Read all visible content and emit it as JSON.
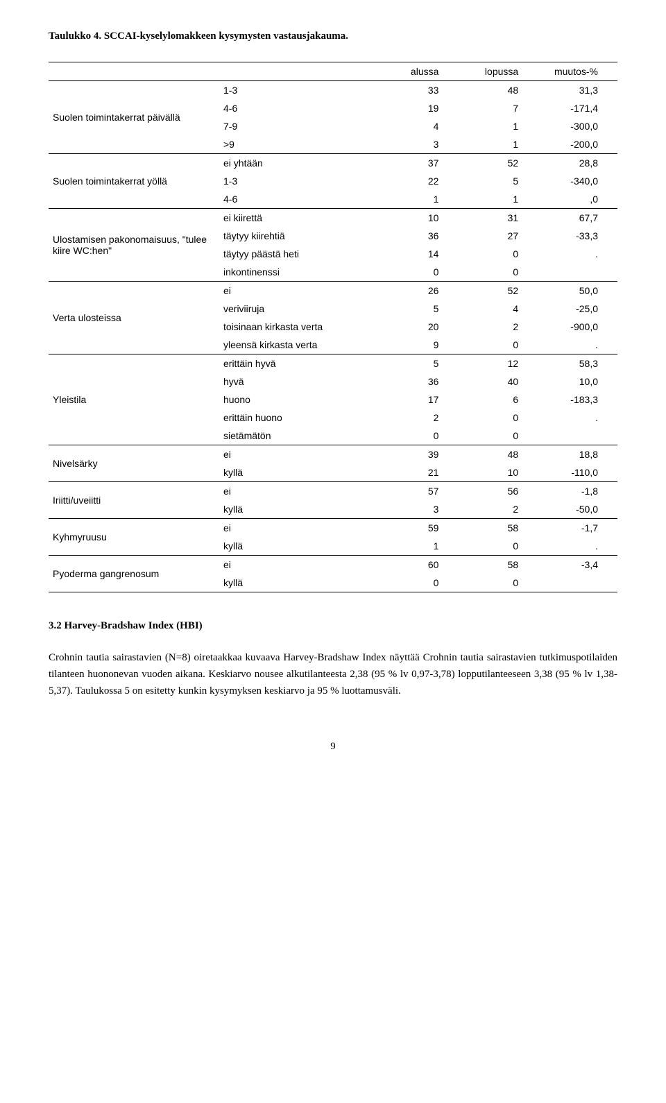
{
  "title_line": "Taulukko 4. SCCAI-kyselylomakkeen kysymysten vastausjakauma.",
  "table": {
    "headers": {
      "c1": "",
      "c2": "",
      "c3": "alussa",
      "c4": "lopussa",
      "c5": "muutos-%"
    },
    "groups": [
      {
        "label": "Suolen toimintakerrat päivällä",
        "rows": [
          {
            "opt": "1-3",
            "a": "33",
            "b": "48",
            "c": "31,3"
          },
          {
            "opt": "4-6",
            "a": "19",
            "b": "7",
            "c": "-171,4"
          },
          {
            "opt": "7-9",
            "a": "4",
            "b": "1",
            "c": "-300,0"
          },
          {
            "opt": ">9",
            "a": "3",
            "b": "1",
            "c": "-200,0"
          }
        ]
      },
      {
        "label": "Suolen toimintakerrat yöllä",
        "rows": [
          {
            "opt": "ei yhtään",
            "a": "37",
            "b": "52",
            "c": "28,8"
          },
          {
            "opt": "1-3",
            "a": "22",
            "b": "5",
            "c": "-340,0"
          },
          {
            "opt": "4-6",
            "a": "1",
            "b": "1",
            "c": ",0"
          }
        ]
      },
      {
        "label": "Ulostamisen pakonomaisuus, \"tulee kiire WC:hen\"",
        "rows": [
          {
            "opt": "ei kiirettä",
            "a": "10",
            "b": "31",
            "c": "67,7"
          },
          {
            "opt": "täytyy kiirehtiä",
            "a": "36",
            "b": "27",
            "c": "-33,3"
          },
          {
            "opt": "täytyy päästä heti",
            "a": "14",
            "b": "0",
            "c": "."
          },
          {
            "opt": "inkontinenssi",
            "a": "0",
            "b": "0",
            "c": ""
          }
        ]
      },
      {
        "label": "Verta ulosteissa",
        "rows": [
          {
            "opt": "ei",
            "a": "26",
            "b": "52",
            "c": "50,0"
          },
          {
            "opt": "veriviiruja",
            "a": "5",
            "b": "4",
            "c": "-25,0"
          },
          {
            "opt": "toisinaan kirkasta verta",
            "a": "20",
            "b": "2",
            "c": "-900,0"
          },
          {
            "opt": "yleensä kirkasta verta",
            "a": "9",
            "b": "0",
            "c": "."
          }
        ]
      },
      {
        "label": "Yleistila",
        "rows": [
          {
            "opt": "erittäin hyvä",
            "a": "5",
            "b": "12",
            "c": "58,3"
          },
          {
            "opt": "hyvä",
            "a": "36",
            "b": "40",
            "c": "10,0"
          },
          {
            "opt": "huono",
            "a": "17",
            "b": "6",
            "c": "-183,3"
          },
          {
            "opt": "erittäin huono",
            "a": "2",
            "b": "0",
            "c": "."
          },
          {
            "opt": "sietämätön",
            "a": "0",
            "b": "0",
            "c": ""
          }
        ]
      },
      {
        "label": "Nivelsärky",
        "rows": [
          {
            "opt": "ei",
            "a": "39",
            "b": "48",
            "c": "18,8"
          },
          {
            "opt": "kyllä",
            "a": "21",
            "b": "10",
            "c": "-110,0"
          }
        ]
      },
      {
        "label": "Iriitti/uveiitti",
        "rows": [
          {
            "opt": "ei",
            "a": "57",
            "b": "56",
            "c": "-1,8"
          },
          {
            "opt": "kyllä",
            "a": "3",
            "b": "2",
            "c": "-50,0"
          }
        ]
      },
      {
        "label": "Kyhmyruusu",
        "rows": [
          {
            "opt": "ei",
            "a": "59",
            "b": "58",
            "c": "-1,7"
          },
          {
            "opt": "kyllä",
            "a": "1",
            "b": "0",
            "c": "."
          }
        ]
      },
      {
        "label": "Pyoderma gangrenosum",
        "rows": [
          {
            "opt": "ei",
            "a": "60",
            "b": "58",
            "c": "-3,4"
          },
          {
            "opt": "kyllä",
            "a": "0",
            "b": "0",
            "c": ""
          }
        ]
      }
    ]
  },
  "section_heading": "3.2 Harvey-Bradshaw Index (HBI)",
  "body_paragraph": "Crohnin tautia sairastavien (N=8) oiretaakkaa kuvaava Harvey-Bradshaw Index näyttää Crohnin tautia sairastavien tutkimuspotilaiden tilanteen huononevan vuoden aikana. Keskiarvo nousee alkutilanteesta 2,38 (95 % lv 0,97-3,78) lopputilanteeseen 3,38 (95 % lv 1,38-5,37). Taulukossa 5 on esitetty kunkin kysymyksen keskiarvo ja 95 % luottamusväli.",
  "page_number": "9",
  "colors": {
    "text": "#000000",
    "bg": "#ffffff",
    "border": "#000000"
  }
}
